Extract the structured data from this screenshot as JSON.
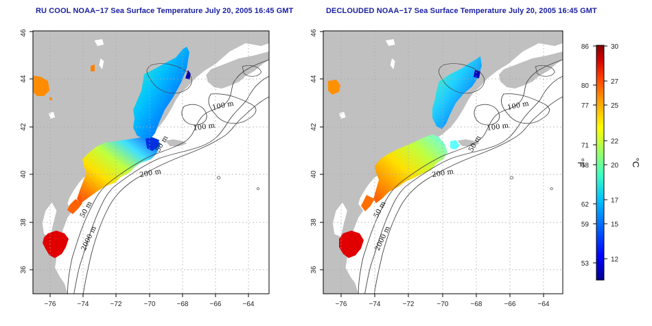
{
  "titles": {
    "left": "RU COOL NOAA−17 Sea Surface Temperature July 20, 2005 16:45 GMT",
    "right": "DECLOUDED NOAA−17 Sea Surface Temperature July 20, 2005 16:45 GMT"
  },
  "axes": {
    "longitude_ticks": [
      "−76",
      "−74",
      "−72",
      "−70",
      "−68",
      "−66",
      "−64"
    ],
    "latitude_ticks": [
      "36",
      "38",
      "40",
      "42",
      "44",
      "46"
    ]
  },
  "contour_labels": {
    "left": [
      "100 m",
      "100 m",
      "50 m",
      "200 m",
      "50 m",
      "2000 m"
    ],
    "right": [
      "100 m",
      "100 m",
      "50 m",
      "200 m",
      "50 m",
      "2000 m"
    ]
  },
  "colorbar": {
    "fahrenheit_ticks": [
      "86",
      "80",
      "77",
      "71",
      "68",
      "62",
      "59",
      "53"
    ],
    "celsius_ticks": [
      "30",
      "27",
      "25",
      "22",
      "20",
      "17",
      "15",
      "12"
    ],
    "fahrenheit_unit": "°F",
    "celsius_unit": "°C",
    "colors": [
      "#00008f",
      "#0000ff",
      "#0060ff",
      "#00c0ff",
      "#40ffc0",
      "#a0ff60",
      "#ffff00",
      "#ffa000",
      "#ff4000",
      "#d00000",
      "#800000"
    ]
  },
  "colors": {
    "land": "#c0c0c0",
    "water": "#ffffff",
    "title": "#1a20a0"
  }
}
